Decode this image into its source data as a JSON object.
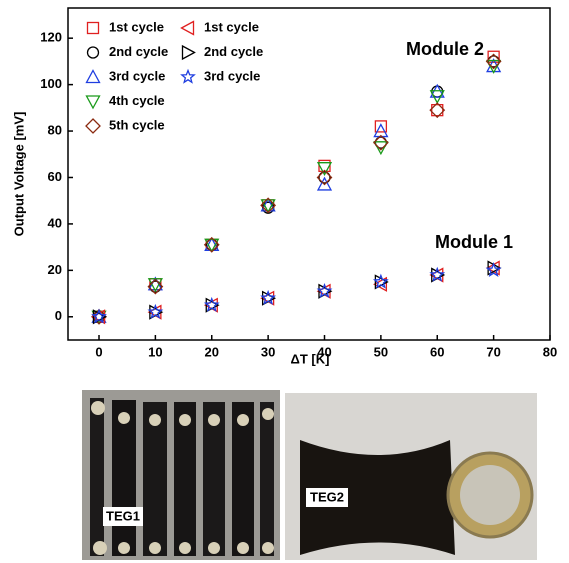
{
  "chart_data": {
    "type": "scatter",
    "x_label": "ΔT [K]",
    "y_label": "Output Voltage [mV]",
    "x": [
      0,
      10,
      20,
      30,
      40,
      50,
      60,
      70
    ],
    "xlim": [
      -5.5,
      80
    ],
    "xticks": [
      0,
      10,
      20,
      30,
      40,
      50,
      60,
      70,
      80
    ],
    "ylim": [
      -10,
      133
    ],
    "yticks": [
      0,
      20,
      40,
      60,
      80,
      100,
      120
    ],
    "annotations": [
      "Module 2",
      "Module 1"
    ],
    "series": [
      {
        "name": "1st cycle",
        "color": "#e02020",
        "marker": "square",
        "values": [
          0,
          14,
          31,
          48,
          65,
          82,
          89,
          112
        ]
      },
      {
        "name": "2nd cycle",
        "color": "#000000",
        "marker": "circle",
        "values": [
          0,
          13,
          31,
          47,
          60,
          75,
          97,
          110
        ]
      },
      {
        "name": "3rd cycle",
        "color": "#1f3ee0",
        "marker": "triangle-up",
        "values": [
          0,
          14,
          31,
          48,
          57,
          80,
          97,
          108
        ]
      },
      {
        "name": "4th cycle",
        "color": "#1a9a1a",
        "marker": "triangle-down",
        "values": [
          0,
          14,
          31,
          48,
          64,
          73,
          95,
          108
        ]
      },
      {
        "name": "5th cycle",
        "color": "#8b2a10",
        "marker": "diamond",
        "values": [
          0,
          13,
          31,
          48,
          60,
          75,
          89,
          110
        ]
      },
      {
        "name": "1st cycle",
        "color": "#e02020",
        "marker": "triangle-left",
        "values": [
          0,
          2,
          5,
          8,
          11,
          14,
          18,
          21
        ]
      },
      {
        "name": "2nd cycle",
        "color": "#000000",
        "marker": "triangle-right",
        "values": [
          0,
          2,
          5,
          8,
          11,
          15,
          18,
          21
        ]
      },
      {
        "name": "3rd cycle",
        "color": "#1f3ee0",
        "marker": "star",
        "values": [
          0,
          2,
          5,
          8,
          11,
          15,
          18,
          20
        ]
      }
    ]
  },
  "photos": [
    {
      "label": "TEG1"
    },
    {
      "label": "TEG2"
    }
  ]
}
